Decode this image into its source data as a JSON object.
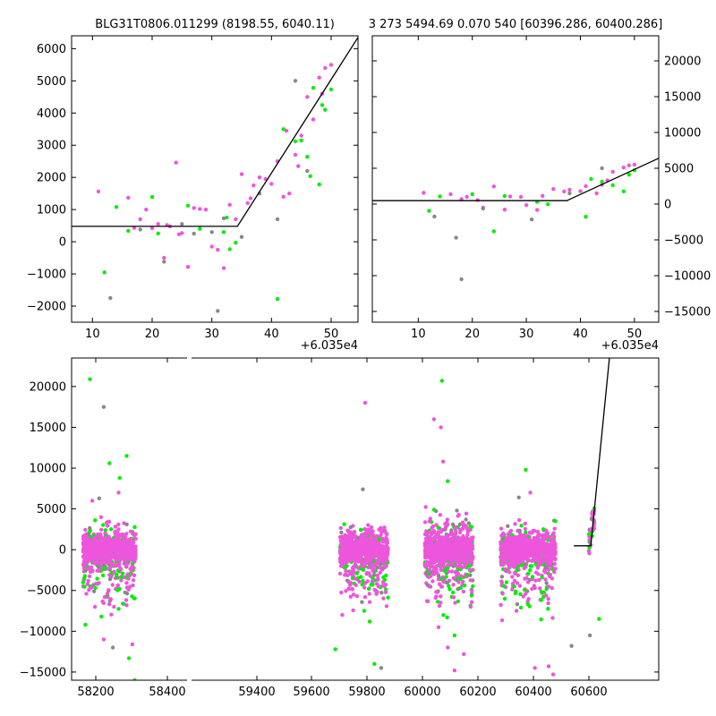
{
  "titles": {
    "left": "BLG31T0806.011299 (8198.55, 6040.11)",
    "right": "3 273 5494.69 0.070 540 [60396.286, 60400.286]"
  },
  "colors": {
    "green": "#00ee00",
    "magenta": "#ee55dd",
    "gray": "#888888",
    "line": "#000000",
    "frame": "#000000"
  },
  "chart_data": [
    {
      "type": "scatter",
      "panel": "top-left",
      "title": "BLG31T0806.011299 (8198.55, 6040.11)",
      "x_offset_label": "+6.035e4",
      "xlim": [
        6.5,
        54.5
      ],
      "ylim": [
        -2500,
        6400
      ],
      "xticks": [
        10,
        20,
        30,
        40,
        50
      ],
      "yticks": [
        -2000,
        -1000,
        0,
        1000,
        2000,
        3000,
        4000,
        5000,
        6000
      ],
      "model_line": [
        [
          6.5,
          480
        ],
        [
          34.3,
          480
        ],
        [
          54.5,
          6350
        ]
      ],
      "series": [
        {
          "color": "magenta",
          "points": [
            [
              11,
              1560
            ],
            [
              16,
              1370
            ],
            [
              17,
              430
            ],
            [
              18,
              700
            ],
            [
              19,
              1000
            ],
            [
              20,
              420
            ],
            [
              21,
              550
            ],
            [
              22,
              -500
            ],
            [
              23,
              480
            ],
            [
              24,
              2460
            ],
            [
              25,
              270
            ],
            [
              26,
              -780
            ],
            [
              27,
              1050
            ],
            [
              28,
              1020
            ],
            [
              29,
              1000
            ],
            [
              30,
              -150
            ],
            [
              31,
              -250
            ],
            [
              32,
              -820
            ],
            [
              33,
              1150
            ],
            [
              34,
              700
            ],
            [
              35,
              2100
            ],
            [
              36,
              1200
            ],
            [
              37,
              1750
            ],
            [
              38,
              2000
            ],
            [
              39,
              1950
            ],
            [
              40,
              1800
            ],
            [
              41,
              2500
            ],
            [
              42,
              1400
            ],
            [
              43,
              1500
            ],
            [
              44,
              2700
            ],
            [
              44.5,
              2350
            ],
            [
              45,
              3300
            ],
            [
              46,
              4500
            ],
            [
              47,
              3800
            ],
            [
              48,
              5100
            ],
            [
              48.5,
              4600
            ],
            [
              49,
              5400
            ],
            [
              50,
              5500
            ],
            [
              42.5,
              3450
            ],
            [
              36.5,
              1350
            ],
            [
              24.5,
              230
            ],
            [
              22.5,
              520
            ]
          ]
        },
        {
          "color": "green",
          "points": [
            [
              12,
              -950
            ],
            [
              14,
              1080
            ],
            [
              16,
              340
            ],
            [
              20,
              1390
            ],
            [
              21,
              260
            ],
            [
              26,
              1120
            ],
            [
              28,
              400
            ],
            [
              32,
              300
            ],
            [
              32.5,
              750
            ],
            [
              33,
              -230
            ],
            [
              34,
              -30
            ],
            [
              41,
              -1780
            ],
            [
              42,
              3500
            ],
            [
              44,
              3120
            ],
            [
              45,
              3150
            ],
            [
              46,
              2640
            ],
            [
              46.5,
              2040
            ],
            [
              47,
              4780
            ],
            [
              48,
              1780
            ],
            [
              48.5,
              4250
            ],
            [
              49,
              4100
            ],
            [
              50,
              4730
            ]
          ]
        },
        {
          "color": "gray",
          "points": [
            [
              13,
              -1750
            ],
            [
              18,
              380
            ],
            [
              22,
              -620
            ],
            [
              25,
              550
            ],
            [
              27,
              250
            ],
            [
              30,
              300
            ],
            [
              31,
              -2150
            ],
            [
              32,
              730
            ],
            [
              35,
              150
            ],
            [
              38,
              1500
            ],
            [
              41,
              700
            ],
            [
              44,
              5000
            ],
            [
              46,
              2200
            ]
          ]
        }
      ]
    },
    {
      "type": "scatter",
      "panel": "top-right",
      "title": "3 273 5494.69 0.070 540 [60396.286, 60400.286]",
      "x_offset_label": "+6.035e4",
      "xlim": [
        1.5,
        54.5
      ],
      "ylim": [
        -16500,
        23500
      ],
      "xticks": [
        10,
        20,
        30,
        40,
        50
      ],
      "yticks": [
        -15000,
        -10000,
        -5000,
        0,
        5000,
        10000,
        15000,
        20000
      ],
      "model_line": [
        [
          1.5,
          480
        ],
        [
          37.5,
          480
        ],
        [
          54.5,
          6400
        ]
      ],
      "series": [
        {
          "color": "magenta",
          "points": [
            [
              11,
              1560
            ],
            [
              16,
              1370
            ],
            [
              18,
              700
            ],
            [
              19,
              1000
            ],
            [
              21,
              550
            ],
            [
              22,
              -500
            ],
            [
              24,
              2460
            ],
            [
              26,
              -780
            ],
            [
              27,
              1050
            ],
            [
              29,
              1000
            ],
            [
              32,
              -820
            ],
            [
              33,
              1150
            ],
            [
              35,
              2100
            ],
            [
              38,
              2000
            ],
            [
              40,
              1800
            ],
            [
              41,
              2500
            ],
            [
              43,
              1500
            ],
            [
              44,
              2700
            ],
            [
              45,
              3300
            ],
            [
              46,
              4500
            ],
            [
              48,
              5100
            ],
            [
              49,
              5400
            ],
            [
              50,
              5500
            ],
            [
              30,
              -150
            ],
            [
              37,
              1750
            ]
          ]
        },
        {
          "color": "green",
          "points": [
            [
              12,
              -950
            ],
            [
              14,
              1080
            ],
            [
              20,
              1390
            ],
            [
              24,
              -3800
            ],
            [
              26,
              1120
            ],
            [
              32,
              300
            ],
            [
              34,
              -30
            ],
            [
              41,
              -1780
            ],
            [
              42,
              3500
            ],
            [
              44,
              3120
            ],
            [
              46,
              2640
            ],
            [
              48,
              1780
            ],
            [
              49,
              4100
            ],
            [
              50,
              4730
            ]
          ]
        },
        {
          "color": "gray",
          "points": [
            [
              13,
              -1750
            ],
            [
              17,
              -4700
            ],
            [
              18,
              -10500
            ],
            [
              22,
              -620
            ],
            [
              31,
              -2150
            ],
            [
              38,
              1500
            ],
            [
              44,
              5000
            ]
          ]
        }
      ]
    },
    {
      "type": "scatter",
      "panel": "bottom",
      "xlim": [
        58120,
        60680
      ],
      "ylim": [
        -16000,
        23500
      ],
      "xticks": [
        58200,
        58400,
        59400,
        59600,
        59800,
        60000,
        60200,
        60400,
        60600
      ],
      "yticks": [
        -15000,
        -10000,
        -5000,
        0,
        5000,
        10000,
        15000,
        20000
      ],
      "model_line": [
        [
          60310,
          480
        ],
        [
          60384,
          480
        ],
        [
          60465,
          23500
        ]
      ],
      "seasons": [
        [
          58170,
          58400
        ],
        [
          59290,
          59500
        ],
        [
          59660,
          59870
        ],
        [
          59990,
          60230
        ]
      ],
      "tail_range": [
        60375,
        60400
      ],
      "outliers": {
        "magenta": [
          [
            58260,
            -11000
          ],
          [
            58305,
            -7000
          ],
          [
            58360,
            -6800
          ],
          [
            58385,
            -11600
          ],
          [
            59400,
            18000
          ],
          [
            59300,
            -8000
          ],
          [
            59700,
            16000
          ],
          [
            59730,
            15000
          ],
          [
            59720,
            -9500
          ],
          [
            59760,
            -12000
          ],
          [
            59790,
            -14800
          ],
          [
            59830,
            -12800
          ],
          [
            59860,
            -7000
          ],
          [
            60120,
            7000
          ],
          [
            60140,
            -14500
          ],
          [
            60200,
            -14300
          ],
          [
            60220,
            -15300
          ],
          [
            60060,
            -7500
          ],
          [
            58210,
            6000
          ],
          [
            58325,
            7000
          ],
          [
            59740,
            10800
          ]
        ],
        "green": [
          [
            58200,
            20900
          ],
          [
            58285,
            10600
          ],
          [
            58330,
            8800
          ],
          [
            58360,
            11500
          ],
          [
            58180,
            -9200
          ],
          [
            58250,
            -8200
          ],
          [
            58370,
            -13300
          ],
          [
            58395,
            -16000
          ],
          [
            59270,
            -12200
          ],
          [
            59420,
            -8800
          ],
          [
            59440,
            -14000
          ],
          [
            59735,
            20700
          ],
          [
            59760,
            8400
          ],
          [
            59700,
            4900
          ],
          [
            60100,
            9800
          ],
          [
            60230,
            3500
          ],
          [
            60420,
            -8500
          ],
          [
            59790,
            -10500
          ],
          [
            60050,
            -4500
          ]
        ],
        "gray": [
          [
            58260,
            17500
          ],
          [
            58240,
            6300
          ],
          [
            59390,
            7400
          ],
          [
            59800,
            4800
          ],
          [
            60070,
            6400
          ],
          [
            60380,
            -10500
          ],
          [
            60300,
            -11800
          ],
          [
            59470,
            -14500
          ],
          [
            58300,
            -12000
          ]
        ]
      }
    }
  ]
}
